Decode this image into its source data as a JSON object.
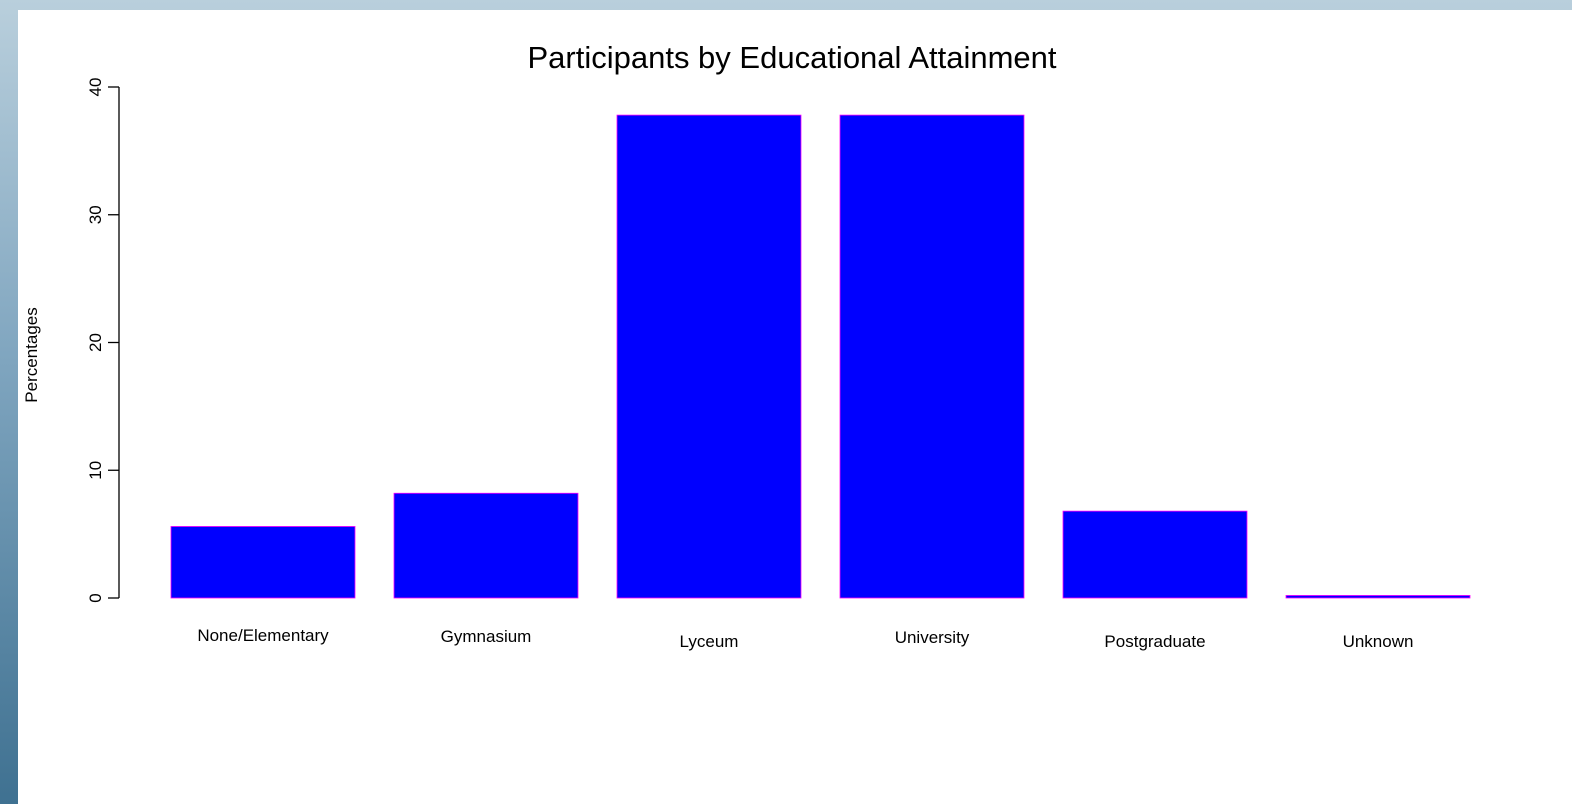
{
  "chart_data": {
    "type": "bar",
    "title": "Participants by Educational Attainment",
    "xlabel": "",
    "ylabel": "Percentages",
    "categories": [
      "None/Elementary",
      "Gymnasium",
      "Lyceum",
      "University",
      "Postgraduate",
      "Unknown"
    ],
    "values": [
      5.6,
      8.2,
      37.8,
      37.8,
      6.8,
      0.2
    ],
    "ylim": [
      0,
      40
    ],
    "yticks": [
      0,
      10,
      20,
      30,
      40
    ],
    "grid": false,
    "legend": "none",
    "colors": {
      "bar_fill": "#0000ff",
      "bar_border": "#ff00ff"
    }
  }
}
